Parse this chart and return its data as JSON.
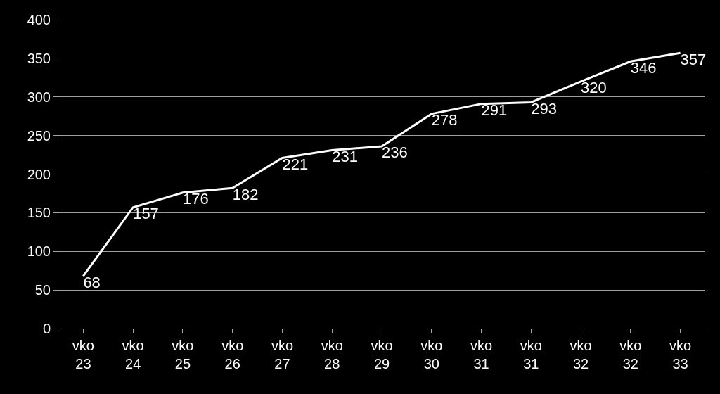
{
  "chart_data": {
    "type": "line",
    "categories": [
      "vko 23",
      "vko 24",
      "vko 25",
      "vko 26",
      "vko 27",
      "vko 28",
      "vko 29",
      "vko 30",
      "vko 31",
      "vko 31",
      "vko 32",
      "vko 32",
      "vko 33"
    ],
    "series": [
      {
        "color": "#ffffff",
        "values": [
          68,
          157,
          176,
          182,
          221,
          231,
          236,
          278,
          291,
          293,
          320,
          346,
          357
        ]
      }
    ],
    "ylim": [
      0,
      400
    ],
    "yticks": [
      0,
      50,
      100,
      150,
      200,
      250,
      300,
      350,
      400
    ],
    "grid": "y",
    "data_labels": true,
    "legend": false,
    "marker": "none",
    "line_style": "solid"
  }
}
